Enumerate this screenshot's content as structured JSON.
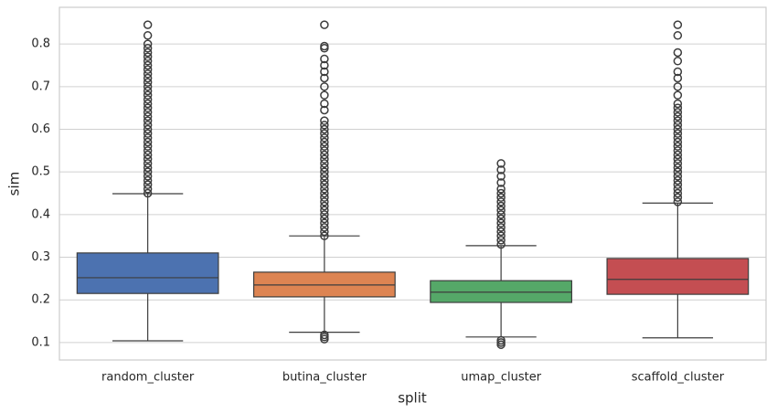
{
  "chart_data": {
    "type": "box",
    "x_label": "split",
    "y_label": "sim",
    "categories": [
      "random_cluster",
      "butina_cluster",
      "umap_cluster",
      "scaffold_cluster"
    ],
    "colors": [
      "#4c72b0",
      "#dd8452",
      "#55a868",
      "#c44e52"
    ],
    "boxes": [
      {
        "whislo": 0.104,
        "q1": 0.215,
        "med": 0.252,
        "q3": 0.31,
        "whishi": 0.449,
        "fliers": [
          0.45,
          0.46,
          0.47,
          0.48,
          0.49,
          0.5,
          0.51,
          0.52,
          0.53,
          0.54,
          0.55,
          0.56,
          0.57,
          0.58,
          0.59,
          0.6,
          0.61,
          0.62,
          0.63,
          0.64,
          0.65,
          0.66,
          0.67,
          0.68,
          0.69,
          0.7,
          0.71,
          0.72,
          0.73,
          0.74,
          0.75,
          0.76,
          0.77,
          0.78,
          0.79,
          0.8,
          0.82,
          0.845
        ]
      },
      {
        "whislo": 0.124,
        "q1": 0.207,
        "med": 0.235,
        "q3": 0.265,
        "whishi": 0.35,
        "fliers": [
          0.108,
          0.113,
          0.118,
          0.35,
          0.36,
          0.37,
          0.38,
          0.39,
          0.4,
          0.41,
          0.42,
          0.43,
          0.44,
          0.45,
          0.46,
          0.47,
          0.48,
          0.49,
          0.5,
          0.51,
          0.52,
          0.53,
          0.54,
          0.55,
          0.56,
          0.57,
          0.58,
          0.59,
          0.6,
          0.61,
          0.62,
          0.645,
          0.66,
          0.68,
          0.7,
          0.72,
          0.735,
          0.75,
          0.765,
          0.79,
          0.795,
          0.845
        ]
      },
      {
        "whislo": 0.113,
        "q1": 0.194,
        "med": 0.218,
        "q3": 0.245,
        "whishi": 0.327,
        "fliers": [
          0.095,
          0.1,
          0.105,
          0.33,
          0.34,
          0.35,
          0.36,
          0.37,
          0.38,
          0.39,
          0.4,
          0.41,
          0.42,
          0.43,
          0.44,
          0.45,
          0.46,
          0.475,
          0.49,
          0.505,
          0.52
        ]
      },
      {
        "whislo": 0.111,
        "q1": 0.213,
        "med": 0.248,
        "q3": 0.297,
        "whishi": 0.427,
        "fliers": [
          0.43,
          0.44,
          0.45,
          0.46,
          0.47,
          0.48,
          0.49,
          0.5,
          0.51,
          0.52,
          0.53,
          0.54,
          0.55,
          0.56,
          0.57,
          0.58,
          0.59,
          0.6,
          0.61,
          0.62,
          0.63,
          0.64,
          0.65,
          0.66,
          0.68,
          0.7,
          0.72,
          0.735,
          0.76,
          0.78,
          0.82,
          0.845
        ]
      }
    ],
    "ylim": [
      0.059,
      0.886
    ],
    "yticks": [
      0.1,
      0.2,
      0.3,
      0.4,
      0.5,
      0.6,
      0.7,
      0.8
    ],
    "grid": true
  }
}
